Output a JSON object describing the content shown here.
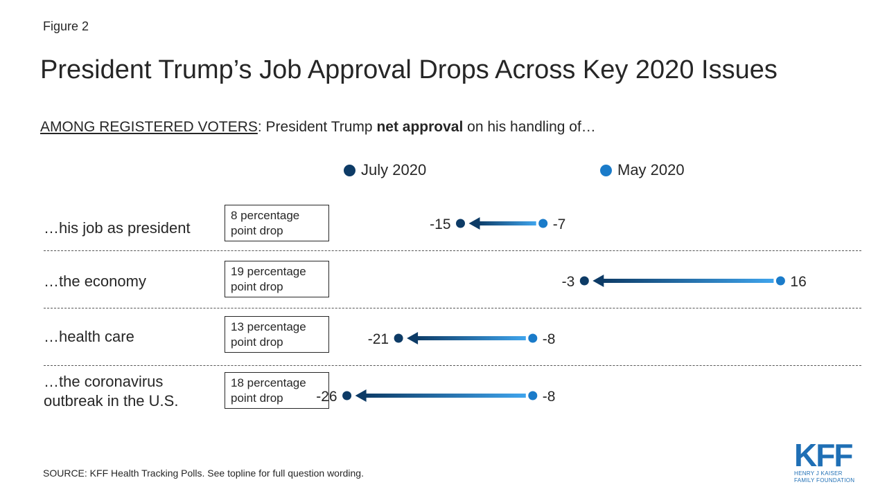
{
  "figure_label": "Figure 2",
  "title": "President Trump’s Job Approval Drops Across Key 2020 Issues",
  "subtitle": {
    "underlined": "AMONG REGISTERED VOTERS",
    "prefix": ": President Trump ",
    "bold": "net approval",
    "suffix": " on his handling of…"
  },
  "colors": {
    "july": "#0d3b66",
    "may": "#1a7bc9",
    "arrow_light": "#3fa4ec"
  },
  "legend": {
    "july": "July 2020",
    "may": "May 2020"
  },
  "chart_data": {
    "type": "dumbbell-arrow",
    "series": [
      {
        "name": "July 2020"
      },
      {
        "name": "May 2020"
      }
    ],
    "rows": [
      {
        "label": "…his job as president",
        "july": -15,
        "may": -7,
        "july_label": "-15",
        "may_label": "-7",
        "drop_line1": "8 percentage",
        "drop_line2": "point drop"
      },
      {
        "label": "…the economy",
        "july": -3,
        "may": 16,
        "july_label": "-3",
        "may_label": "16",
        "drop_line1": "19 percentage",
        "drop_line2": "point drop"
      },
      {
        "label": "…health care",
        "july": -21,
        "may": -8,
        "july_label": "-21",
        "may_label": "-8",
        "drop_line1": "13 percentage",
        "drop_line2": "point drop"
      },
      {
        "label_line1": "…the coronavirus",
        "label_line2": "outbreak in the U.S.",
        "july": -26,
        "may": -8,
        "july_label": "-26",
        "may_label": "-8",
        "drop_line1": "18 percentage",
        "drop_line2": "point drop"
      }
    ]
  },
  "source": "SOURCE: KFF Health Tracking Polls. See topline for full question wording.",
  "logo": {
    "big": "KFF",
    "line1": "Henry J Kaiser",
    "line2": "Family Foundation"
  }
}
